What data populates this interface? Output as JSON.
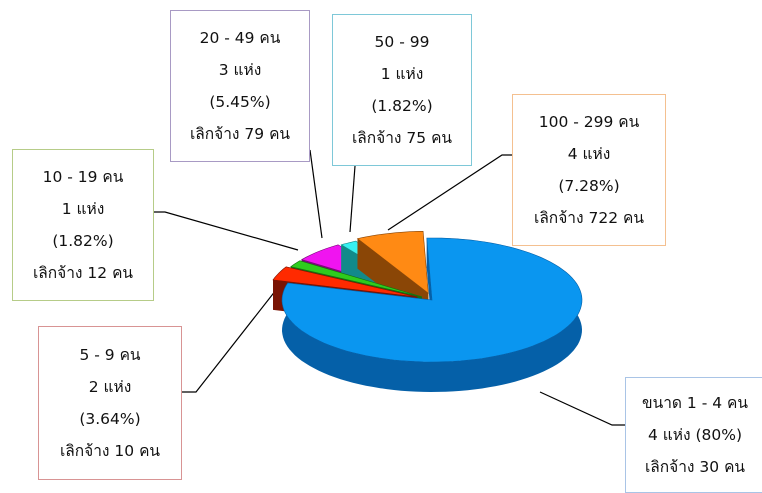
{
  "chart_data": {
    "type": "pie",
    "categories": [
      "ขนาด 1 - 4 คน",
      "5 - 9 คน",
      "10 - 19 คน",
      "20 - 49 คน",
      "50 - 99",
      "100 - 299 คน"
    ],
    "values": [
      80,
      3.64,
      1.82,
      5.45,
      1.82,
      7.28
    ],
    "title": "",
    "exploded": true,
    "three_d": true,
    "legend": "none"
  },
  "slices": [
    {
      "label": "ขนาด 1 - 4 คน",
      "count": "4 แห่ง (80%)",
      "percent": "",
      "laid_off": "เลิกจ้าง 30 คน",
      "color": "#0a96f0",
      "dark": "#0560a8",
      "border": "#a9c4e6"
    },
    {
      "label": "5 - 9 คน",
      "count": "2 แห่ง",
      "percent": "(3.64%)",
      "laid_off": "เลิกจ้าง 10 คน",
      "color": "#ff2a00",
      "dark": "#7a1404",
      "border": "#d89494"
    },
    {
      "label": "10 - 19 คน",
      "count": "1 แห่ง",
      "percent": "(1.82%)",
      "laid_off": "เลิกจ้าง 12 คน",
      "color": "#2ecc1e",
      "dark": "#177010",
      "border": "#b6cc88"
    },
    {
      "label": "20 - 49 คน",
      "count": "3 แห่ง",
      "percent": "(5.45%)",
      "laid_off": "เลิกจ้าง 79 คน",
      "color": "#f014f0",
      "dark": "#7a0a7a",
      "border": "#a89ac4"
    },
    {
      "label": "50 - 99",
      "count": "1 แห่ง",
      "percent": "(1.82%)",
      "laid_off": "เลิกจ้าง 75 คน",
      "color": "#38f0f0",
      "dark": "#128a8a",
      "border": "#7ec8d8"
    },
    {
      "label": "100 - 299 คน",
      "count": "4 แห่ง",
      "percent": "(7.28%)",
      "laid_off": "เลิกจ้าง 722 คน",
      "color": "#ff8a14",
      "dark": "#8a4606",
      "border": "#f4c090"
    }
  ]
}
